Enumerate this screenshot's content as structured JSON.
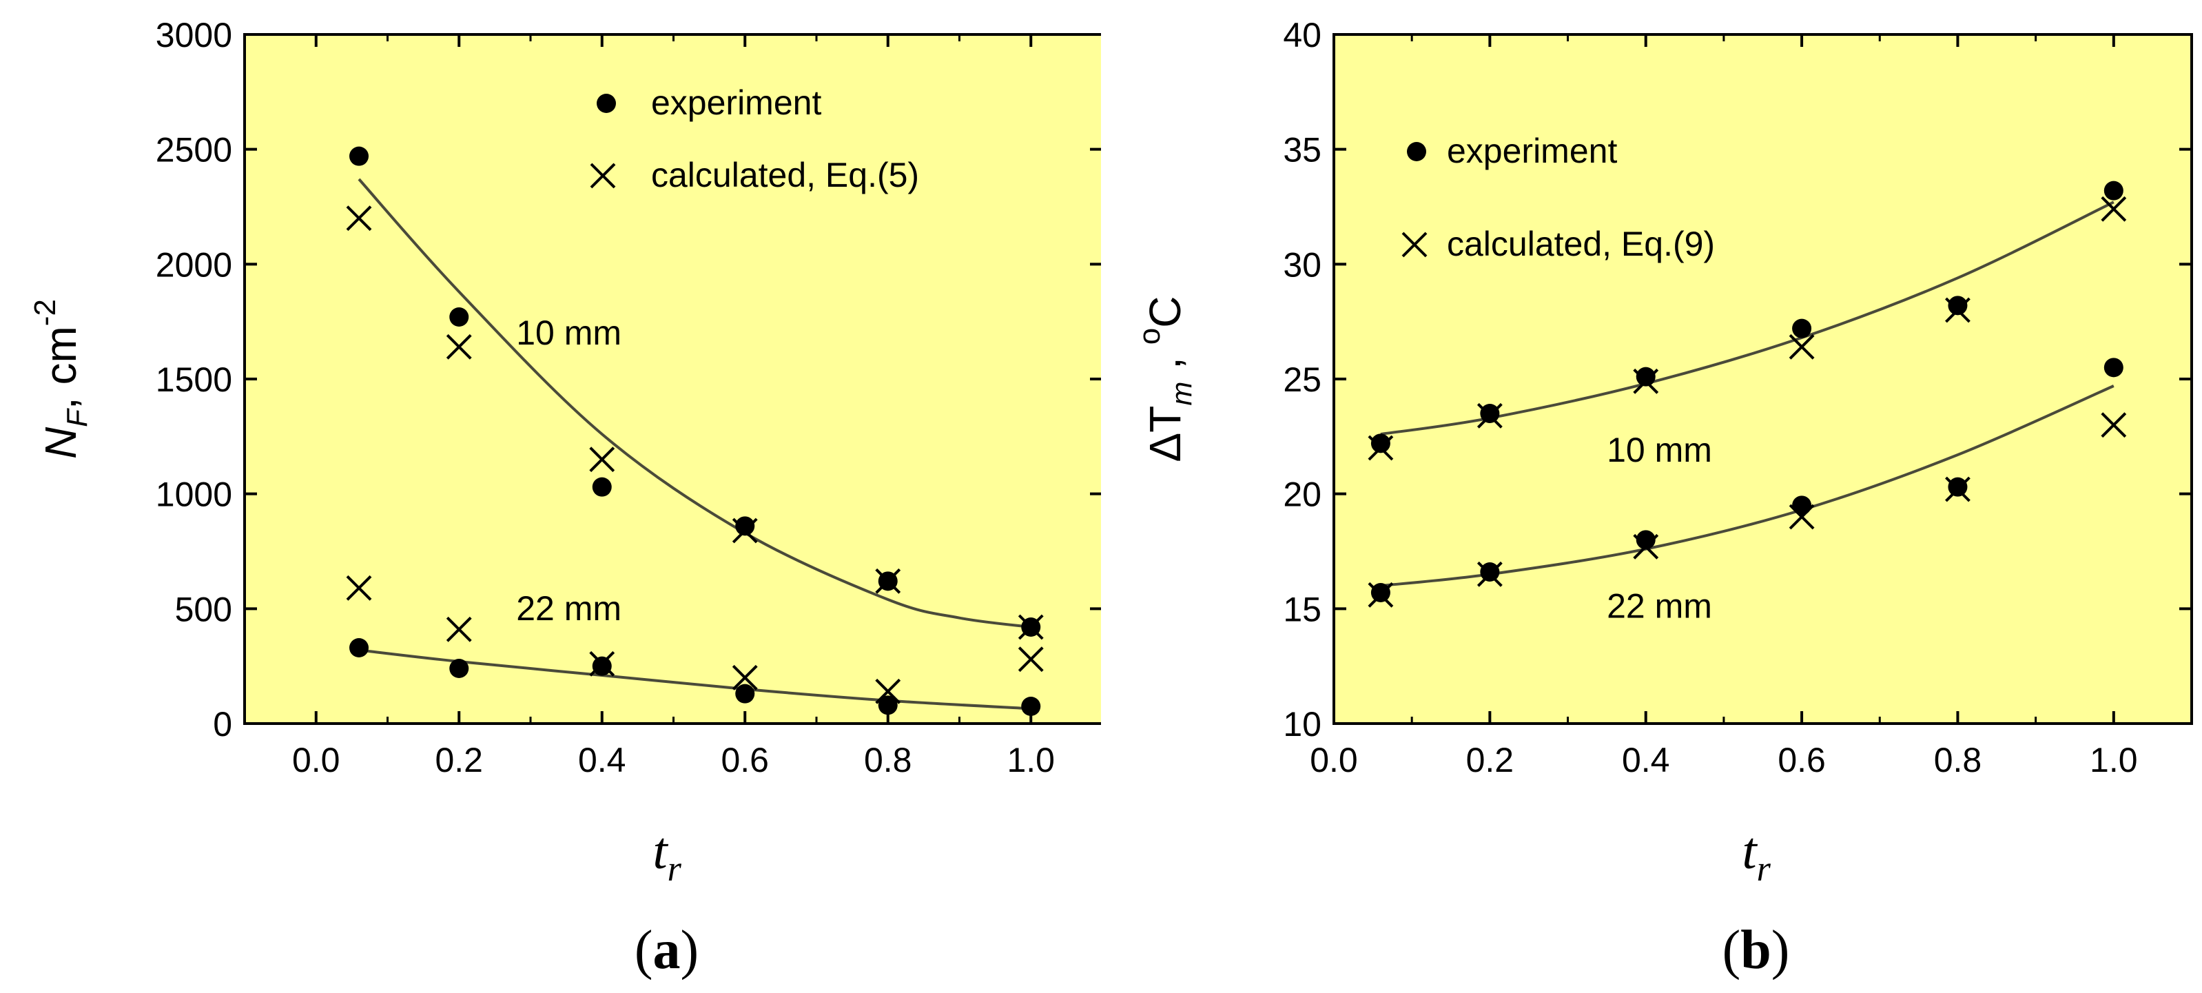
{
  "colors": {
    "plot_bg": "#ffff99",
    "ink": "#000000",
    "curve": "#4a4a3a"
  },
  "chart_data": [
    {
      "id": "a",
      "type": "scatter",
      "panel_label": "a",
      "xlabel": "t",
      "xlabel_sub": "r",
      "ylabel": "N",
      "ylabel_sub": "F",
      "ylabel_rest": ", cm",
      "ylabel_sup": "-2",
      "xlim": [
        -0.1,
        1.1
      ],
      "ylim": [
        0,
        3000
      ],
      "xticks": [
        {
          "v": 0.0,
          "label": "0.0"
        },
        {
          "v": 0.2,
          "label": "0.2"
        },
        {
          "v": 0.4,
          "label": "0.4"
        },
        {
          "v": 0.6,
          "label": "0.6"
        },
        {
          "v": 0.8,
          "label": "0.8"
        },
        {
          "v": 1.0,
          "label": "1.0"
        }
      ],
      "yticks": [
        {
          "v": 0,
          "label": "0"
        },
        {
          "v": 500,
          "label": "500"
        },
        {
          "v": 1000,
          "label": "1000"
        },
        {
          "v": 1500,
          "label": "1500"
        },
        {
          "v": 2000,
          "label": "2000"
        },
        {
          "v": 2500,
          "label": "2500"
        },
        {
          "v": 3000,
          "label": "3000"
        }
      ],
      "legend": {
        "experiment": "experiment",
        "calculated": "calculated, Eq.(5)"
      },
      "series": [
        {
          "name": "10 mm",
          "x": [
            0.06,
            0.2,
            0.4,
            0.6,
            0.8,
            1.0
          ],
          "experiment": [
            2470,
            1770,
            1030,
            860,
            620,
            420
          ],
          "calculated": [
            2200,
            1640,
            1150,
            840,
            620,
            420
          ],
          "fit": {
            "x": [
              0.06,
              0.2,
              0.4,
              0.6,
              0.8,
              0.9,
              1.0
            ],
            "y": [
              2370,
              1880,
              1260,
              830,
              540,
              460,
              420
            ]
          }
        },
        {
          "name": "22 mm",
          "x": [
            0.06,
            0.2,
            0.4,
            0.6,
            0.8,
            1.0
          ],
          "experiment": [
            330,
            240,
            250,
            130,
            80,
            75
          ],
          "calculated": [
            590,
            410,
            260,
            200,
            140,
            280
          ],
          "fit": {
            "x": [
              0.06,
              0.2,
              0.4,
              0.6,
              0.8,
              1.0
            ],
            "y": [
              320,
              270,
              210,
              150,
              100,
              65
            ]
          }
        }
      ],
      "annotations": [
        {
          "text": "10 mm",
          "x": 0.28,
          "y": 1650
        },
        {
          "text": "22 mm",
          "x": 0.28,
          "y": 450
        }
      ]
    },
    {
      "id": "b",
      "type": "scatter",
      "panel_label": "b",
      "xlabel": "t",
      "xlabel_sub": "r",
      "ylabel": "ΔT",
      "ylabel_sub": "m",
      "ylabel_rest": " , ",
      "ylabel_sup": "o",
      "ylabel_unit": "C",
      "xlim": [
        0.0,
        1.1
      ],
      "ylim": [
        10,
        40
      ],
      "xticks": [
        {
          "v": 0.0,
          "label": "0.0"
        },
        {
          "v": 0.2,
          "label": "0.2"
        },
        {
          "v": 0.4,
          "label": "0.4"
        },
        {
          "v": 0.6,
          "label": "0.6"
        },
        {
          "v": 0.8,
          "label": "0.8"
        },
        {
          "v": 1.0,
          "label": "1.0"
        }
      ],
      "yticks": [
        {
          "v": 10,
          "label": "10"
        },
        {
          "v": 15,
          "label": "15"
        },
        {
          "v": 20,
          "label": "20"
        },
        {
          "v": 25,
          "label": "25"
        },
        {
          "v": 30,
          "label": "30"
        },
        {
          "v": 35,
          "label": "35"
        },
        {
          "v": 40,
          "label": "40"
        }
      ],
      "legend": {
        "experiment": "experiment",
        "calculated": "calculated, Eq.(9)"
      },
      "series": [
        {
          "name": "10 mm",
          "x": [
            0.06,
            0.2,
            0.4,
            0.6,
            0.8,
            1.0
          ],
          "experiment": [
            22.2,
            23.5,
            25.1,
            27.2,
            28.2,
            33.2
          ],
          "calculated": [
            22.0,
            23.4,
            24.9,
            26.4,
            28.0,
            32.4
          ],
          "fit": {
            "x": [
              0.06,
              0.2,
              0.4,
              0.6,
              0.8,
              1.0
            ],
            "y": [
              22.6,
              23.3,
              24.8,
              26.8,
              29.4,
              32.7
            ]
          }
        },
        {
          "name": "22 mm",
          "x": [
            0.06,
            0.2,
            0.4,
            0.6,
            0.8,
            1.0
          ],
          "experiment": [
            15.7,
            16.6,
            18.0,
            19.5,
            20.3,
            25.5
          ],
          "calculated": [
            15.6,
            16.5,
            17.7,
            19.0,
            20.2,
            23.0
          ],
          "fit": {
            "x": [
              0.06,
              0.2,
              0.4,
              0.6,
              0.8,
              1.0
            ],
            "y": [
              16.0,
              16.5,
              17.6,
              19.3,
              21.7,
              24.7
            ]
          }
        }
      ],
      "annotations": [
        {
          "text": "10 mm",
          "x": 0.35,
          "y": 21.4
        },
        {
          "text": "22 mm",
          "x": 0.35,
          "y": 14.6
        }
      ]
    }
  ]
}
